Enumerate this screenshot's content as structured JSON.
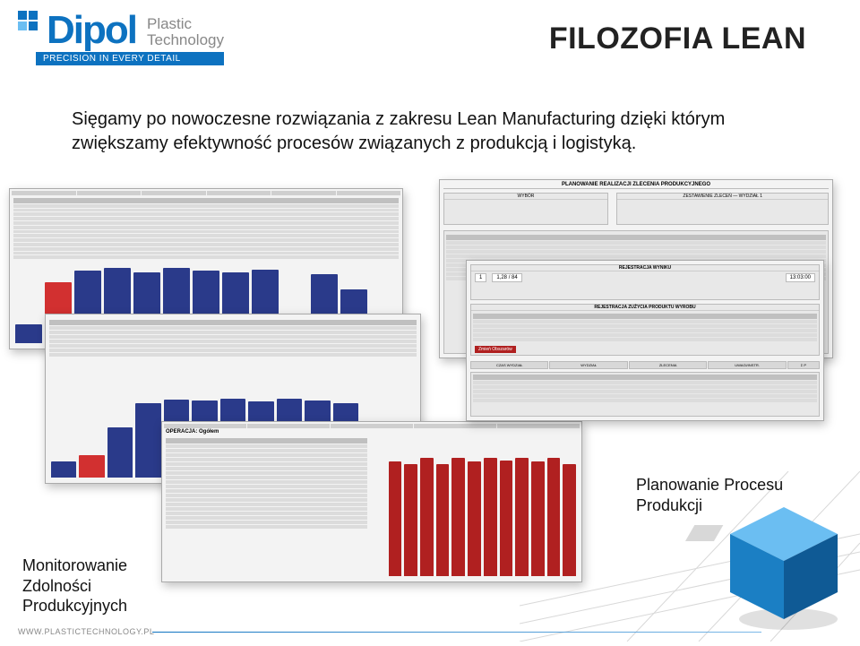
{
  "brand": {
    "name_main": "Dipol",
    "name_sub1": "Plastic",
    "name_sub2": "Technology",
    "tagline": "PRECISION IN EVERY DETAIL",
    "primary_color": "#0d72c0",
    "grey": "#8a8a8a"
  },
  "page_title": "FILOZOFIA LEAN",
  "body_text": "Sięgamy po nowoczesne rozwiązania z zakresu Lean Manufacturing dzięki którym zwiększamy efektywność procesów związanych z produkcją i logistyką.",
  "captions": {
    "right": "Planowanie Procesu\nProdukcji",
    "left": "Monitorowanie\nZdolności\nProdukcyjnych"
  },
  "footer_url": "WWW.PLASTICTECHNOLOGY.PL",
  "screenshots": {
    "a": {
      "kind": "table+bar",
      "bar_heights": [
        25,
        80,
        95,
        98,
        92,
        98,
        95,
        92,
        96,
        10,
        90,
        70,
        20
      ],
      "bar_color": "#2a3a8a",
      "bar_accent": "#d23030",
      "bar_accent_indices": [
        1
      ],
      "table_rows": 14,
      "bg": "#f0f0f0"
    },
    "d": {
      "kind": "bar",
      "bar_heights": [
        20,
        28,
        62,
        92,
        96,
        95,
        98,
        94,
        98,
        95,
        92,
        70,
        18
      ],
      "bar_color": "#2a3a8a",
      "bar_accent": "#d23030",
      "bar_accent_indices": [
        1
      ],
      "bg": "#f0f0f0"
    },
    "e": {
      "kind": "table+bar",
      "header": "OPERACJA: Ogółem",
      "bar_heights": [
        92,
        90,
        95,
        90,
        95,
        92,
        95,
        93,
        95,
        92,
        95,
        90
      ],
      "bar_color": "#b02020",
      "table_rows": 20,
      "bg": "#f0f0f0"
    },
    "c": {
      "kind": "form",
      "title": "PLANOWANIE REALIZACJI ZLECENIA PRODUKCYJNEGO",
      "panel_left": "WYBÓR",
      "panel_right": "ZESTAWIENIE ZLECEŃ — WYDZIAŁ 1",
      "table_rows": 10,
      "bg": "#eeeeee"
    },
    "b": {
      "kind": "form",
      "title_upper": "REJESTRACJA WYNIKU",
      "title_lower": "REJESTRACJA ZUŻYCIA PRODUKTU WYROBU",
      "numbers": [
        "1",
        "1,28 / 84",
        "13:03:00"
      ],
      "section_tabs": [
        "CZAS WYDZIAŁ",
        "WYDZIAŁ",
        "ZLECENIA",
        "UWAGI/INSTR.",
        "Σ P"
      ],
      "button_red": "Zmień Obszarów",
      "bg": "#eaeaea"
    }
  },
  "cube": {
    "face_top": "#6bbef2",
    "face_left": "#1b7fc4",
    "face_right": "#0f5a95",
    "shadow": "#00000022"
  },
  "colors": {
    "text": "#111111",
    "shot_border": "#aaaaaa"
  }
}
